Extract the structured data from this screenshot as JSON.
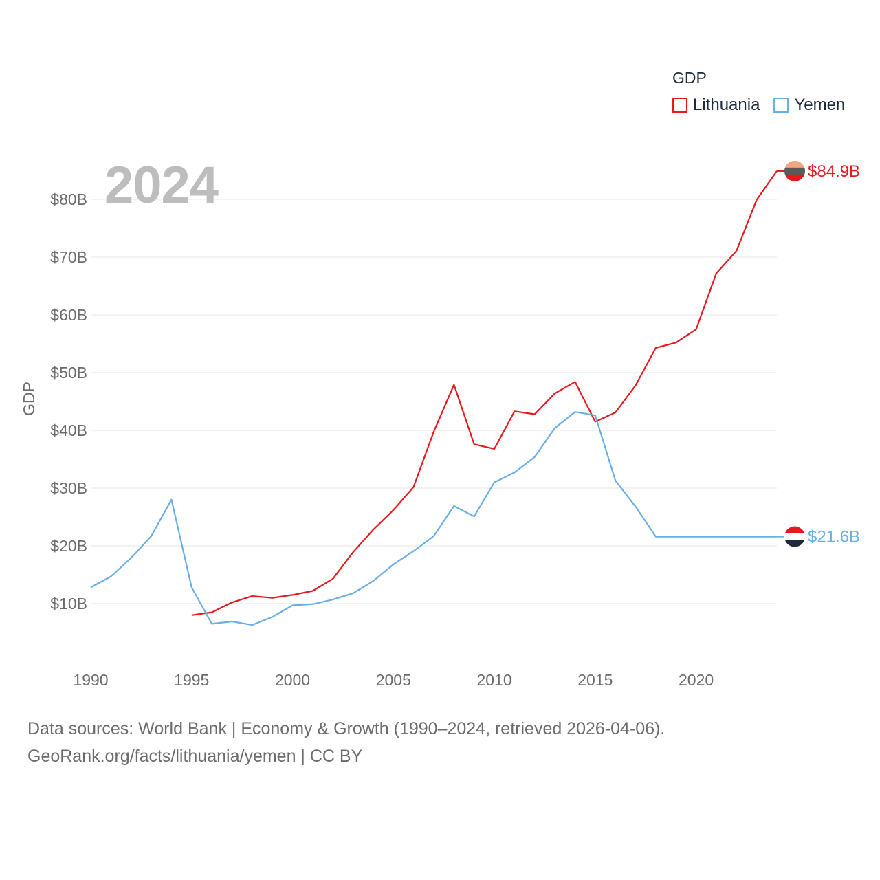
{
  "chart_data": {
    "type": "line",
    "title": "GDP",
    "xlabel": "",
    "ylabel": "GDP",
    "year_badge": "2024",
    "xlim": [
      1990,
      2024
    ],
    "ylim": [
      0,
      90
    ],
    "y_ticks": [
      10,
      20,
      30,
      40,
      50,
      60,
      70,
      80
    ],
    "y_tick_labels": [
      "$10B",
      "$20B",
      "$30B",
      "$40B",
      "$50B",
      "$60B",
      "$70B",
      "$80B"
    ],
    "x_ticks": [
      1990,
      1995,
      2000,
      2005,
      2010,
      2015,
      2020
    ],
    "x_tick_labels": [
      "1990",
      "1995",
      "2000",
      "2005",
      "2010",
      "2015",
      "2020"
    ],
    "legend_position": "top-right",
    "series": [
      {
        "name": "Lithuania",
        "color": "#e8181c",
        "end_label": "$84.9B",
        "flag": "lithuania-flag",
        "points": [
          [
            1995,
            8.0
          ],
          [
            1996,
            8.5
          ],
          [
            1997,
            10.2
          ],
          [
            1998,
            11.3
          ],
          [
            1999,
            11.0
          ],
          [
            2000,
            11.5
          ],
          [
            2001,
            12.2
          ],
          [
            2002,
            14.3
          ],
          [
            2003,
            18.9
          ],
          [
            2004,
            22.8
          ],
          [
            2005,
            26.2
          ],
          [
            2006,
            30.2
          ],
          [
            2007,
            39.8
          ],
          [
            2008,
            47.9
          ],
          [
            2009,
            37.6
          ],
          [
            2010,
            36.8
          ],
          [
            2011,
            43.3
          ],
          [
            2012,
            42.8
          ],
          [
            2013,
            46.4
          ],
          [
            2014,
            48.4
          ],
          [
            2015,
            41.5
          ],
          [
            2016,
            43.1
          ],
          [
            2017,
            47.8
          ],
          [
            2018,
            54.3
          ],
          [
            2019,
            55.2
          ],
          [
            2020,
            57.5
          ],
          [
            2021,
            67.2
          ],
          [
            2022,
            71.1
          ],
          [
            2023,
            79.9
          ],
          [
            2024,
            84.9
          ]
        ]
      },
      {
        "name": "Yemen",
        "color": "#6aaee6",
        "end_label": "$21.6B",
        "flag": "yemen-flag",
        "points": [
          [
            1990,
            12.8
          ],
          [
            1991,
            14.7
          ],
          [
            1992,
            17.9
          ],
          [
            1993,
            21.7
          ],
          [
            1994,
            28.0
          ],
          [
            1995,
            12.8
          ],
          [
            1996,
            6.5
          ],
          [
            1997,
            6.9
          ],
          [
            1998,
            6.3
          ],
          [
            1999,
            7.7
          ],
          [
            2000,
            9.7
          ],
          [
            2001,
            9.9
          ],
          [
            2002,
            10.7
          ],
          [
            2003,
            11.8
          ],
          [
            2004,
            13.9
          ],
          [
            2005,
            16.8
          ],
          [
            2006,
            19.1
          ],
          [
            2007,
            21.7
          ],
          [
            2008,
            26.9
          ],
          [
            2009,
            25.1
          ],
          [
            2010,
            31.0
          ],
          [
            2011,
            32.7
          ],
          [
            2012,
            35.4
          ],
          [
            2013,
            40.4
          ],
          [
            2014,
            43.2
          ],
          [
            2015,
            42.6
          ],
          [
            2016,
            31.3
          ],
          [
            2017,
            26.8
          ],
          [
            2018,
            21.6
          ],
          [
            2019,
            21.6
          ],
          [
            2020,
            21.6
          ],
          [
            2021,
            21.6
          ],
          [
            2022,
            21.6
          ],
          [
            2023,
            21.6
          ],
          [
            2024,
            21.6
          ]
        ]
      }
    ]
  },
  "legend": {
    "title": "GDP",
    "items": [
      {
        "label": "Lithuania",
        "color": "#e8181c"
      },
      {
        "label": "Yemen",
        "color": "#6aaee6"
      }
    ]
  },
  "footer": {
    "sources": "Data sources: World Bank | Economy & Growth (1990–2024, retrieved 2026-04-06).",
    "credit": "GeoRank.org/facts/lithuania/yemen | CC BY"
  }
}
